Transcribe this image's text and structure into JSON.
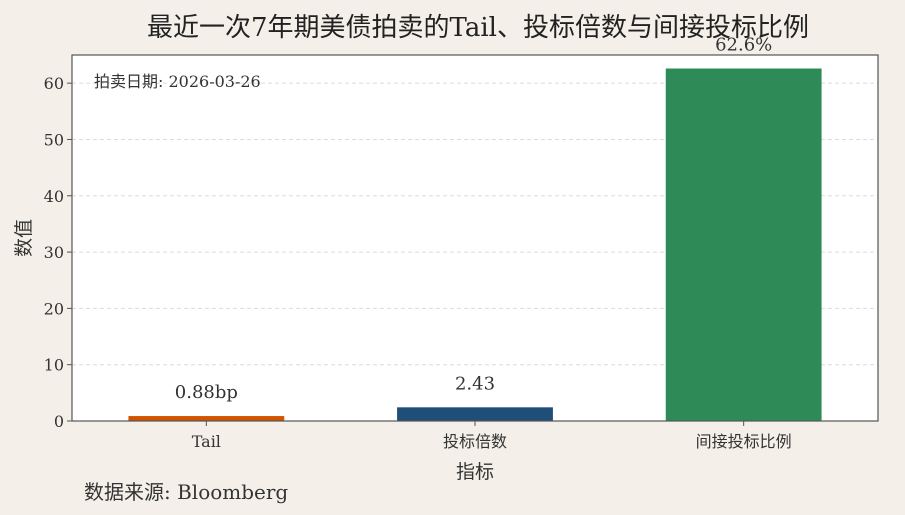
{
  "chart_data": {
    "type": "bar",
    "title": "最近一次7年期美债拍卖的Tail、投标倍数与间接投标比例",
    "xlabel": "指标",
    "ylabel": "数值",
    "categories": [
      "Tail",
      "投标倍数",
      "间接投标比例"
    ],
    "values": [
      0.88,
      2.43,
      62.6
    ],
    "value_labels": [
      "0.88bp",
      "2.43",
      "62.6%"
    ],
    "colors": [
      "#d35400",
      "#1f4e79",
      "#2e8b57"
    ],
    "ylim": [
      0,
      65
    ],
    "yticks": [
      0,
      10,
      20,
      30,
      40,
      50,
      60
    ],
    "grid": true,
    "annotation": "拍卖日期: 2026-03-26",
    "source": "数据来源: Bloomberg"
  }
}
